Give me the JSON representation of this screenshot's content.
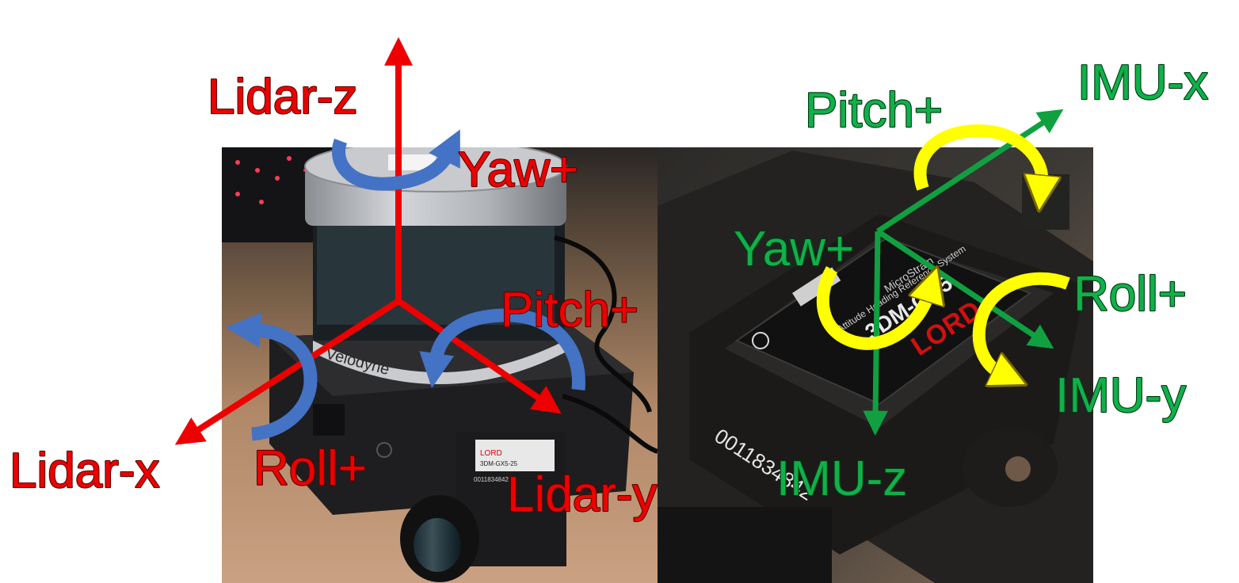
{
  "lidar": {
    "axis_z_label": "Lidar-z",
    "axis_x_label": "Lidar-x",
    "axis_y_label": "Lidar-y",
    "yaw_label": "Yaw+",
    "pitch_label": "Pitch+",
    "roll_label": "Roll+",
    "photo_labels": {
      "brand": "Velodyne",
      "imu_brand": "LORD",
      "imu_model": "3DM-GX5-25",
      "imu_serial": "0011834842"
    }
  },
  "imu": {
    "axis_x_label": "IMU-x",
    "axis_y_label": "IMU-y",
    "axis_z_label": "IMU-z",
    "yaw_label": "Yaw+",
    "pitch_label": "Pitch+",
    "roll_label": "Roll+",
    "photo_labels": {
      "brand": "LORD",
      "model": "3DM-GX5",
      "serial": "0011834842",
      "text_line1": "MicroStrain",
      "text_line2": "Attitude Heading Reference System"
    }
  },
  "colors": {
    "lidar_axis": "#ee0000",
    "lidar_rotation": "#4472c4",
    "imu_axis": "#10a040",
    "imu_rotation": "#ffff00"
  }
}
